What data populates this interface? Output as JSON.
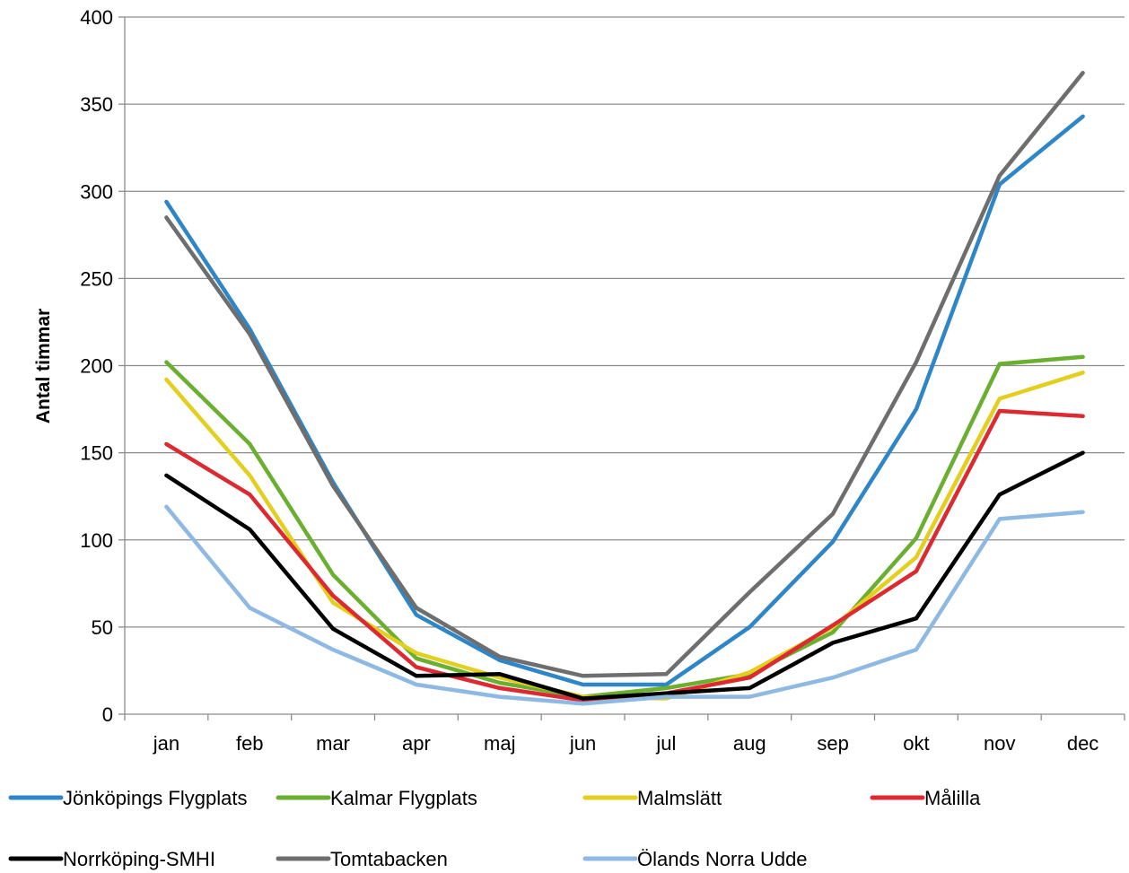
{
  "chart_data": {
    "type": "line",
    "title": "",
    "xlabel": "",
    "ylabel": "Antal timmar",
    "ylim": [
      0,
      400
    ],
    "yticks": [
      0,
      50,
      100,
      150,
      200,
      250,
      300,
      350,
      400
    ],
    "grid": "horizontal",
    "legend_position": "bottom",
    "categories": [
      "jan",
      "feb",
      "mar",
      "apr",
      "maj",
      "jun",
      "jul",
      "aug",
      "sep",
      "okt",
      "nov",
      "dec"
    ],
    "series": [
      {
        "name": "Jönköpings Flygplats",
        "color": "#2E86C8",
        "values": [
          294,
          221,
          133,
          57,
          31,
          17,
          17,
          50,
          99,
          175,
          304,
          343
        ]
      },
      {
        "name": "Kalmar Flygplats",
        "color": "#6AAF2F",
        "values": [
          202,
          155,
          80,
          32,
          18,
          10,
          15,
          23,
          47,
          101,
          201,
          205
        ]
      },
      {
        "name": "Malmslätt",
        "color": "#E3CF1F",
        "values": [
          192,
          137,
          64,
          35,
          21,
          10,
          9,
          24,
          50,
          90,
          181,
          196
        ]
      },
      {
        "name": "Målilla",
        "color": "#DC2A32",
        "values": [
          155,
          126,
          68,
          27,
          15,
          8,
          12,
          21,
          51,
          82,
          174,
          171
        ]
      },
      {
        "name": "Norrköping-SMHI",
        "color": "#000000",
        "values": [
          137,
          106,
          49,
          22,
          23,
          9,
          12,
          15,
          41,
          55,
          126,
          150
        ]
      },
      {
        "name": "Tomtabacken",
        "color": "#6E6E6E",
        "values": [
          285,
          218,
          131,
          61,
          33,
          22,
          23,
          70,
          115,
          202,
          309,
          368
        ]
      },
      {
        "name": "Ölands Norra Udde",
        "color": "#8DB9E3",
        "values": [
          119,
          61,
          37,
          17,
          10,
          6,
          10,
          10,
          21,
          37,
          112,
          116
        ]
      }
    ]
  }
}
